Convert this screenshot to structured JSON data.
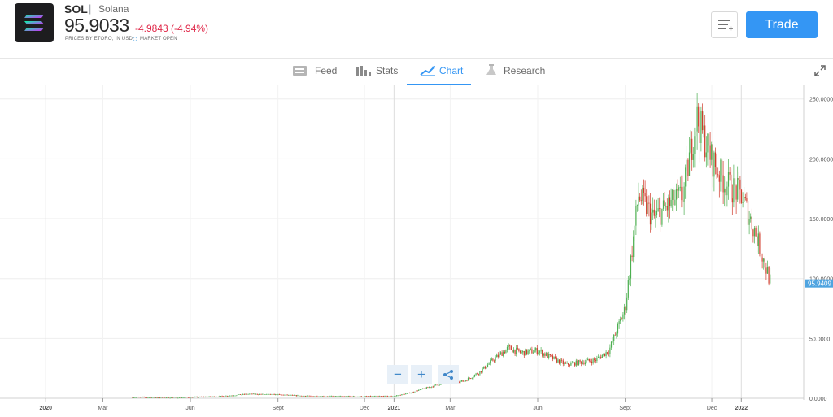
{
  "instrument": {
    "symbol": "SOL",
    "separator": "|",
    "name": "Solana",
    "price": "95.9033",
    "change": "-4.9843 (-4.94%)",
    "prices_by": "PRICES BY ETORO, IN USD",
    "market_status": "MARKET OPEN"
  },
  "actions": {
    "trade_label": "Trade"
  },
  "tabs": [
    {
      "label": "Feed",
      "icon": "feed-icon",
      "active": false
    },
    {
      "label": "Stats",
      "icon": "stats-icon",
      "active": false
    },
    {
      "label": "Chart",
      "icon": "chart-icon",
      "active": true
    },
    {
      "label": "Research",
      "icon": "research-icon",
      "active": false
    }
  ],
  "zoom": {
    "minus": "−",
    "plus": "+"
  },
  "colors": {
    "accent": "#3496f4",
    "negative": "#e0294a",
    "up_candle": "#4caf50",
    "down_candle": "#d03a2a"
  },
  "chart_data": {
    "type": "line",
    "style": "candlestick",
    "x_tick_labels": [
      "2020",
      "Mar",
      "Jun",
      "Sept",
      "Dec",
      "2021",
      "Mar",
      "Jun",
      "Sept",
      "Dec",
      "2022"
    ],
    "y_tick_labels": [
      "0.0000",
      "50.0000",
      "100.0000",
      "150.0000",
      "200.0000",
      "250.0000"
    ],
    "ylim": [
      0,
      260
    ],
    "last_price_label": "95.9409",
    "last_price": 95.9409,
    "grid": true,
    "series": [
      {
        "x": [
          "2020-04",
          "2020-05",
          "2020-06",
          "2020-07",
          "2020-08",
          "2020-09",
          "2020-10",
          "2020-11",
          "2020-12",
          "2021-01",
          "2021-01-15",
          "2021-02",
          "2021-02-15",
          "2021-03",
          "2021-03-15",
          "2021-04",
          "2021-04-15",
          "2021-05",
          "2021-05-15",
          "2021-06",
          "2021-06-15",
          "2021-07",
          "2021-07-15",
          "2021-08",
          "2021-08-15",
          "2021-09",
          "2021-09-15",
          "2021-10",
          "2021-10-15",
          "2021-11",
          "2021-11-15",
          "2021-12",
          "2021-12-15",
          "2022-01",
          "2022-01-15",
          "2022-02"
        ],
        "values": [
          0.9,
          0.6,
          0.8,
          1.5,
          3.5,
          3.0,
          1.8,
          1.6,
          1.5,
          1.8,
          4,
          8,
          11,
          15,
          14,
          22,
          32,
          42,
          38,
          40,
          34,
          28,
          30,
          32,
          40,
          75,
          170,
          150,
          160,
          170,
          235,
          200,
          180,
          170,
          140,
          96
        ]
      }
    ]
  }
}
